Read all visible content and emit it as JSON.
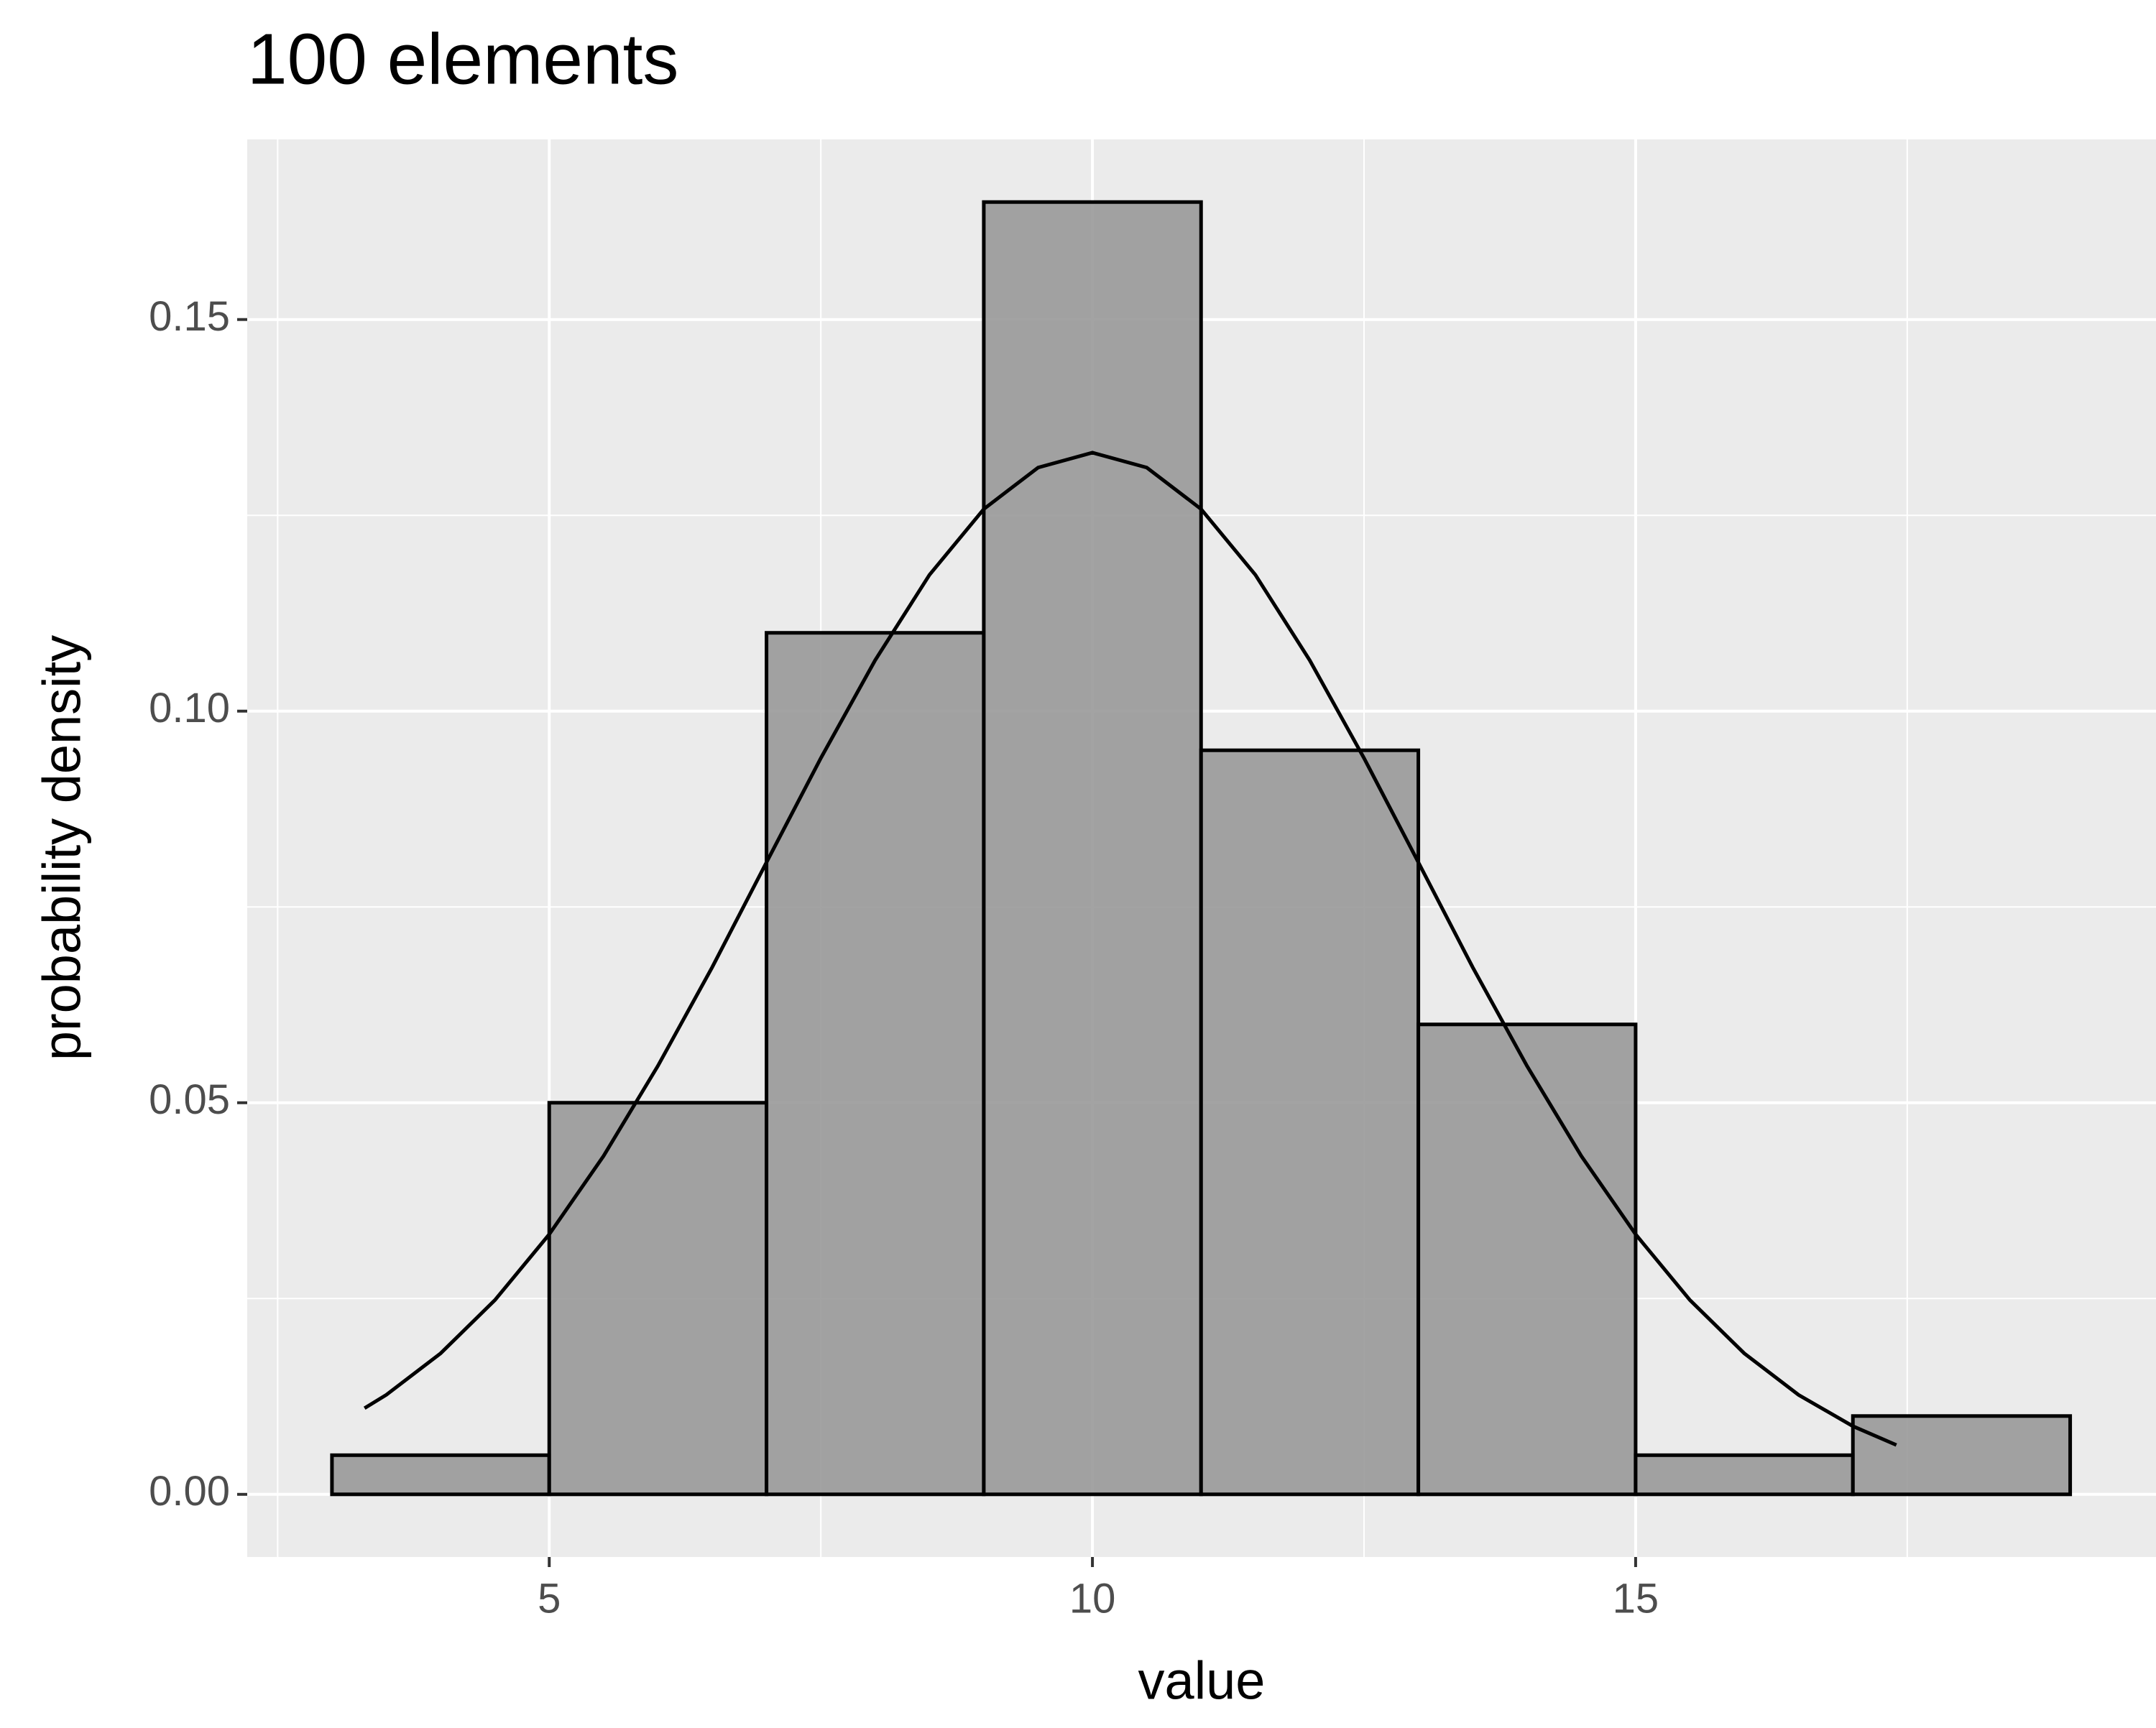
{
  "chart_data": {
    "type": "histogram",
    "title": "100 elements",
    "x_label": "value",
    "y_label": "probability density",
    "bins": [
      3,
      5,
      7,
      9,
      11,
      13,
      15,
      17,
      19
    ],
    "values": [
      0.005,
      0.05,
      0.11,
      0.165,
      0.095,
      0.06,
      0.005,
      0.01
    ],
    "color": "#999999",
    "edge_color": "#000000",
    "curve": {
      "color": "#000000",
      "x": [
        3.3,
        3.5,
        4,
        4.5,
        5,
        5.5,
        6,
        6.5,
        7,
        7.5,
        8,
        8.5,
        9,
        9.5,
        10,
        10.5,
        11,
        11.5,
        12,
        12.5,
        13,
        13.5,
        14,
        14.5,
        15,
        15.5,
        16,
        16.5,
        17,
        17.4
      ],
      "values": [
        0.011,
        0.0127,
        0.018,
        0.0248,
        0.0332,
        0.0432,
        0.0547,
        0.0673,
        0.0807,
        0.094,
        0.1065,
        0.1174,
        0.1258,
        0.1311,
        0.133,
        0.1311,
        0.1258,
        0.1174,
        0.1065,
        0.094,
        0.0807,
        0.0673,
        0.0547,
        0.0432,
        0.0332,
        0.0248,
        0.018,
        0.0127,
        0.0087,
        0.0063
      ]
    },
    "xlim": [
      2.22,
      19.79
    ],
    "ylim": [
      -0.008,
      0.173
    ],
    "xticks": [
      5,
      10,
      15
    ],
    "yticks": [
      {
        "value": 0,
        "label": "0.00"
      },
      0.05,
      {
        "value": 0.1,
        "label": "0.10"
      },
      0.15
    ],
    "grid": true
  }
}
